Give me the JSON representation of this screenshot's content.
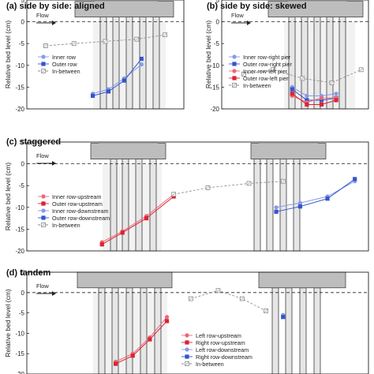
{
  "colors": {
    "blue": "#3355cc",
    "lightblue": "#8899e8",
    "red": "#dd2233",
    "pink": "#ee6677",
    "gray": "#888888",
    "pier_fill": "#e6e6e6",
    "cap_fill": "#bdbdbd",
    "top_fill": "#d6d6d6",
    "shade": "#c8c8c8"
  },
  "chart_data": [
    {
      "id": "a",
      "type": "line",
      "title": "(a) side by side: aligned",
      "ylabel": "Relative bed level (cm)",
      "flow_label": "Flow",
      "ylim": [
        -20,
        5
      ],
      "yticks": [
        5,
        0,
        -5,
        -10,
        -15,
        -20
      ],
      "xlim": [
        0,
        10
      ],
      "series": [
        {
          "name": "Inner row",
          "style": "inner",
          "x": [
            4.2,
            5.2,
            6.2,
            7.3
          ],
          "y": [
            -16.5,
            -15.5,
            -13.0,
            -9.8
          ]
        },
        {
          "name": "Outer row",
          "style": "outer",
          "x": [
            4.2,
            5.2,
            6.2,
            7.3
          ],
          "y": [
            -17.0,
            -16.0,
            -13.5,
            -8.5
          ]
        },
        {
          "name": "In-between",
          "style": "between",
          "x": [
            1.2,
            3.0,
            5.0,
            7.0,
            8.8
          ],
          "y": [
            -5.5,
            -5.0,
            -4.5,
            -4.0,
            -3.0
          ]
        }
      ]
    },
    {
      "id": "b",
      "type": "line",
      "title": "(b) side by side: skewed",
      "ylabel": "Relative bed level (cm)",
      "flow_label": "Flow",
      "ylim": [
        -20,
        5
      ],
      "yticks": [
        5,
        0,
        -5,
        -10,
        -15,
        -20
      ],
      "xlim": [
        0,
        10
      ],
      "series": [
        {
          "name": "Inner row-right pier",
          "style": "inner",
          "x": [
            4.8,
            5.8,
            6.8,
            7.8
          ],
          "y": [
            -15.0,
            -17.0,
            -17.0,
            -16.5
          ]
        },
        {
          "name": "Outer row-right pier",
          "style": "outer",
          "x": [
            4.8,
            5.8,
            6.8,
            7.8
          ],
          "y": [
            -15.5,
            -18.0,
            -18.0,
            -17.5
          ]
        },
        {
          "name": "Inner row-left pier",
          "style": "inner_red",
          "x": [
            4.8,
            5.8,
            6.8,
            7.8
          ],
          "y": [
            -17.0,
            -18.5,
            -17.5,
            -17.5
          ]
        },
        {
          "name": "Outer row-left pier",
          "style": "outer_red",
          "x": [
            4.8,
            5.8,
            6.8,
            7.8
          ],
          "y": [
            -16.5,
            -19.0,
            -19.0,
            -18.0
          ]
        },
        {
          "name": "In-between",
          "style": "between",
          "x": [
            1.5,
            3.5,
            5.5,
            7.5,
            9.5
          ],
          "y": [
            -12.0,
            -11.0,
            -13.0,
            -14.0,
            -11.0
          ]
        }
      ]
    },
    {
      "id": "c",
      "type": "line",
      "title": "(c) staggered",
      "ylabel": "Relative bed level (cm)",
      "flow_label": "Flow",
      "ylim": [
        -20,
        5
      ],
      "yticks": [
        5,
        0,
        -5,
        -10,
        -15,
        -20
      ],
      "xlim": [
        0,
        10
      ],
      "series": [
        {
          "name": "Inner row-upstream",
          "style": "inner_red",
          "x": [
            2.2,
            2.8,
            3.5,
            4.3
          ],
          "y": [
            -18.0,
            -15.5,
            -12.0,
            -7.0
          ]
        },
        {
          "name": "Outer row-upstream",
          "style": "outer_red",
          "x": [
            2.2,
            2.8,
            3.5,
            4.3
          ],
          "y": [
            -18.5,
            -15.8,
            -12.5,
            -7.5
          ]
        },
        {
          "name": "Inner row-downstream",
          "style": "inner",
          "x": [
            7.3,
            8.0,
            8.8,
            9.6
          ],
          "y": [
            -10.0,
            -9.0,
            -7.5,
            -4.0
          ]
        },
        {
          "name": "Outer row-downstream",
          "style": "outer",
          "x": [
            7.3,
            8.0,
            8.8,
            9.6
          ],
          "y": [
            -11.0,
            -9.8,
            -8.0,
            -3.5
          ]
        },
        {
          "name": "In-between",
          "style": "between",
          "x": [
            4.3,
            5.3,
            6.5,
            7.5
          ],
          "y": [
            -7.0,
            -5.5,
            -4.5,
            -4.0
          ]
        }
      ]
    },
    {
      "id": "d",
      "type": "line",
      "title": "(d) tandem",
      "ylabel": "Relative bed level (cm)",
      "flow_label": "Flow",
      "ylim": [
        -20,
        5
      ],
      "yticks": [
        5,
        0,
        -5,
        -10,
        -15,
        -20
      ],
      "xlim": [
        0,
        10
      ],
      "series": [
        {
          "name": "Left row-upstream",
          "style": "inner_red",
          "x": [
            2.6,
            3.1,
            3.6,
            4.1
          ],
          "y": [
            -17.0,
            -15.0,
            -11.0,
            -6.0
          ]
        },
        {
          "name": "Right row-upstream",
          "style": "outer_red",
          "x": [
            2.6,
            3.1,
            3.6,
            4.1
          ],
          "y": [
            -17.5,
            -15.5,
            -11.5,
            -7.0
          ]
        },
        {
          "name": "Left row-downstream",
          "style": "inner",
          "x": [
            7.5
          ],
          "y": [
            -5.5
          ]
        },
        {
          "name": "Right row-downstream",
          "style": "outer",
          "x": [
            7.5
          ],
          "y": [
            -6.0
          ]
        },
        {
          "name": "In-between",
          "style": "between",
          "x": [
            4.8,
            5.6,
            6.3,
            7.0
          ],
          "y": [
            -1.5,
            0.5,
            -1.5,
            -4.5
          ]
        }
      ]
    }
  ]
}
